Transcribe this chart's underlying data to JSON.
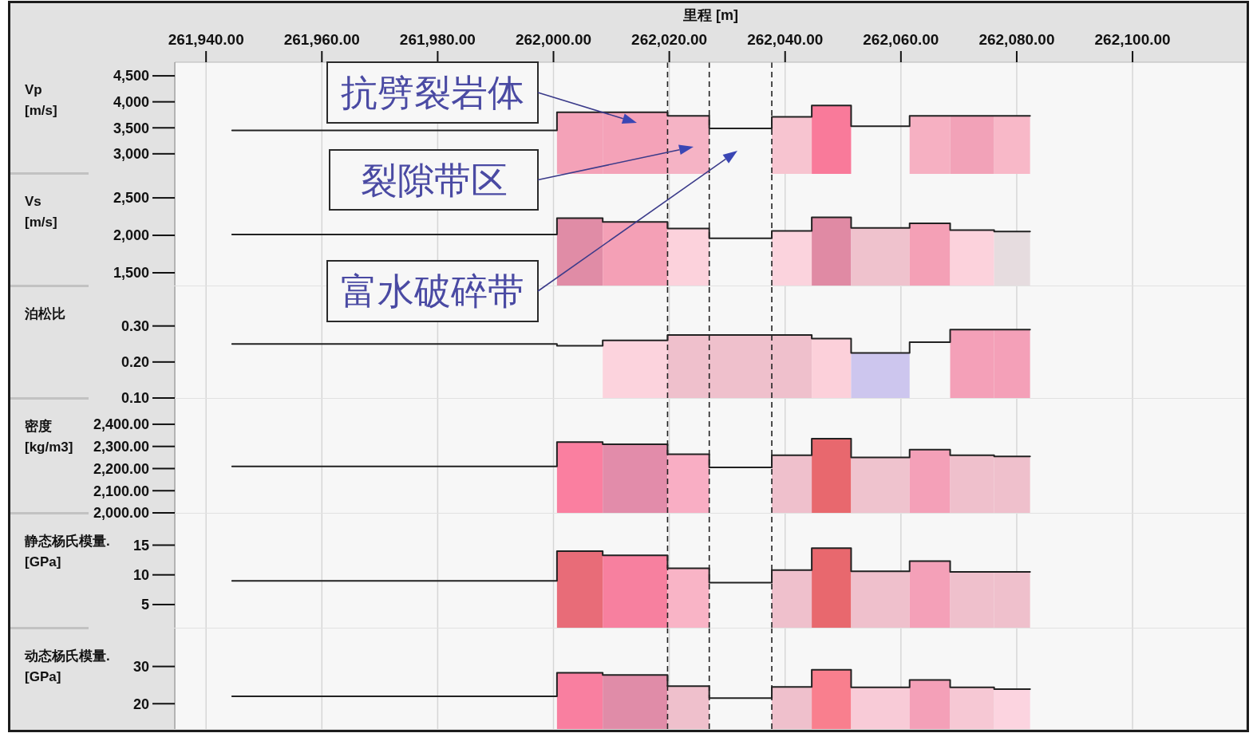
{
  "chart_data": [
    {
      "type": "histogram",
      "xlabel": "里程 [m]",
      "ylabel": "Vp\n[m/s]",
      "xlim": [
        261934.6,
        262119.7
      ],
      "xticks": [
        {
          "value": 261940,
          "label": "261,940.00"
        },
        {
          "value": 261960,
          "label": "261,960.00"
        },
        {
          "value": 261980,
          "label": "261,980.00"
        },
        {
          "value": 262000,
          "label": "262,000.00"
        },
        {
          "value": 262020,
          "label": "262,020.00"
        },
        {
          "value": 262040,
          "label": "262,040.00"
        },
        {
          "value": 262060,
          "label": "262,060.00"
        },
        {
          "value": 262080,
          "label": "262,080.00"
        },
        {
          "value": 262100,
          "label": "262,100.00"
        }
      ],
      "ylim": [
        2614,
        4762
      ],
      "yticks": [
        {
          "value": 3000,
          "label": "3,000"
        },
        {
          "value": 3500,
          "label": "3,500"
        },
        {
          "value": 4000,
          "label": "4,000"
        },
        {
          "value": 4500,
          "label": "4,500"
        }
      ],
      "grid": "x",
      "bins": [
        262000.6,
        262008.5,
        262019.7,
        262026.9,
        262037.7,
        262044.6,
        262051.4,
        262061.5,
        262068.5,
        262076.1,
        262082.3
      ],
      "values": [
        3800,
        3800,
        3730,
        null,
        3710,
        3930,
        null,
        3730,
        3730,
        3730
      ],
      "colors": [
        "#f4a2b8",
        "#f4a2b8",
        "#f5b3c5",
        null,
        "#f7c4d0",
        "#f97a9a",
        null,
        "#f6b0c2",
        "#f2a2b8",
        "#f8b8c8"
      ],
      "series": [
        {
          "type": "step",
          "color": "#222222",
          "x": [
            261944.5,
            262000.6,
            262008.5,
            262019.7,
            262026.9,
            262037.7,
            262044.6,
            262051.4,
            262061.5,
            262068.5,
            262076.1,
            262082.3
          ],
          "values": [
            3450,
            3800,
            3800,
            3730,
            3490,
            3710,
            3930,
            3530,
            3730,
            3730,
            3730,
            3730
          ]
        }
      ],
      "ref_lines": [
        {
          "axis": "x",
          "value": 262019.7,
          "line_style": "dashed",
          "color": "#222222"
        },
        {
          "axis": "x",
          "value": 262026.9,
          "line_style": "dashed",
          "color": "#222222"
        },
        {
          "axis": "x",
          "value": 262037.7,
          "line_style": "dashed",
          "color": "#222222"
        }
      ],
      "annotations": [
        "抗劈裂岩体",
        "裂隙带区",
        "富水破碎带"
      ]
    },
    {
      "type": "histogram",
      "ylabel": "Vs\n[m/s]",
      "tick_labels": "y",
      "xlim": [
        261934.6,
        262119.7
      ],
      "xticks": [
        261940,
        261960,
        261980,
        262000,
        262020,
        262040,
        262060,
        262080,
        262100
      ],
      "ylim": [
        1330,
        2820
      ],
      "yticks": [
        {
          "value": 1500,
          "label": "1,500"
        },
        {
          "value": 2000,
          "label": "2,000"
        },
        {
          "value": 2500,
          "label": "2,500"
        }
      ],
      "grid": "x",
      "bins": [
        262000.6,
        262008.5,
        262019.7,
        262026.9,
        262037.7,
        262044.6,
        262051.4,
        262061.5,
        262068.5,
        262076.1,
        262082.3
      ],
      "values": [
        2230,
        2180,
        2090,
        null,
        2060,
        2240,
        2100,
        2160,
        2070,
        2050
      ],
      "colors": [
        "#e08ca6",
        "#f4a0b6",
        "#fcd2dc",
        null,
        "#fbd3dd",
        "#e08aa4",
        "#efc2cd",
        "#f4a0b6",
        "#fcd2dc",
        "#e6dcdf"
      ],
      "series": [
        {
          "type": "step",
          "color": "#222222",
          "x": [
            261944.5,
            262000.6,
            262008.5,
            262019.7,
            262026.9,
            262037.7,
            262044.6,
            262051.4,
            262061.5,
            262068.5,
            262076.1,
            262082.3
          ],
          "values": [
            2010,
            2230,
            2180,
            2090,
            1960,
            2060,
            2240,
            2100,
            2160,
            2070,
            2050,
            2050
          ]
        }
      ],
      "ref_lines": [
        {
          "axis": "x",
          "value": 262019.7,
          "line_style": "dashed",
          "color": "#222222"
        },
        {
          "axis": "x",
          "value": 262026.9,
          "line_style": "dashed",
          "color": "#222222"
        },
        {
          "axis": "x",
          "value": 262037.7,
          "line_style": "dashed",
          "color": "#222222"
        }
      ]
    },
    {
      "type": "histogram",
      "ylabel": "泊松比",
      "tick_labels": "y",
      "xlim": [
        261934.6,
        262119.7
      ],
      "xticks": [
        261940,
        261960,
        261980,
        262000,
        262020,
        262040,
        262060,
        262080,
        262100
      ],
      "ylim": [
        0.1,
        0.41
      ],
      "yticks": [
        {
          "value": 0.1,
          "label": "0.10"
        },
        {
          "value": 0.2,
          "label": "0.20"
        },
        {
          "value": 0.3,
          "label": "0.30"
        }
      ],
      "grid": "x",
      "bins": [
        262008.5,
        262019.7,
        262026.9,
        262037.7,
        262044.6,
        262051.4,
        262061.5,
        262068.5,
        262076.1,
        262082.3
      ],
      "values": [
        0.26,
        0.275,
        0.275,
        0.275,
        0.265,
        0.225,
        null,
        0.29,
        0.29
      ],
      "colors": [
        "#fcd3dd",
        "#efc0cc",
        "#efc0cc",
        "#efc0cc",
        "#fcd0da",
        "#cdc6ee",
        null,
        "#f4a0b8",
        "#f4a0b8"
      ],
      "series": [
        {
          "type": "step",
          "color": "#222222",
          "x": [
            261944.5,
            262000.6,
            262008.5,
            262019.7,
            262026.9,
            262037.7,
            262044.6,
            262051.4,
            262061.5,
            262068.5,
            262076.1,
            262082.3
          ],
          "values": [
            0.25,
            0.245,
            0.26,
            0.275,
            0.275,
            0.275,
            0.265,
            0.225,
            0.255,
            0.29,
            0.29,
            0.29
          ]
        }
      ],
      "ref_lines": [
        {
          "axis": "x",
          "value": 262019.7,
          "line_style": "dashed",
          "color": "#222222"
        },
        {
          "axis": "x",
          "value": 262026.9,
          "line_style": "dashed",
          "color": "#222222"
        },
        {
          "axis": "x",
          "value": 262037.7,
          "line_style": "dashed",
          "color": "#222222"
        }
      ]
    },
    {
      "type": "histogram",
      "ylabel": "密度\n[kg/m3]",
      "tick_labels": "y",
      "xlim": [
        261934.6,
        262119.7
      ],
      "xticks": [
        261940,
        261960,
        261980,
        262000,
        262020,
        262040,
        262060,
        262080,
        262100
      ],
      "ylim": [
        2000,
        2515
      ],
      "yticks": [
        {
          "value": 2000,
          "label": "2,000.00"
        },
        {
          "value": 2100,
          "label": "2,100.00"
        },
        {
          "value": 2200,
          "label": "2,200.00"
        },
        {
          "value": 2300,
          "label": "2,300.00"
        },
        {
          "value": 2400,
          "label": "2,400.00"
        }
      ],
      "grid": "x",
      "bins": [
        262000.6,
        262008.5,
        262019.7,
        262026.9,
        262037.7,
        262044.6,
        262051.4,
        262061.5,
        262068.5,
        262076.1,
        262082.3
      ],
      "values": [
        2320,
        2310,
        2265,
        null,
        2260,
        2335,
        2250,
        2285,
        2260,
        2255
      ],
      "colors": [
        "#fa7fa0",
        "#e28caa",
        "#f9aec4",
        null,
        "#efc0cc",
        "#e8686e",
        "#efc3ce",
        "#f4a0b8",
        "#efc0cc",
        "#efc0cc"
      ],
      "series": [
        {
          "type": "step",
          "color": "#222222",
          "x": [
            261944.5,
            262000.6,
            262008.5,
            262019.7,
            262026.9,
            262037.7,
            262044.6,
            262051.4,
            262061.5,
            262068.5,
            262076.1,
            262082.3
          ],
          "values": [
            2210,
            2320,
            2310,
            2265,
            2205,
            2260,
            2335,
            2250,
            2285,
            2260,
            2255,
            2255
          ]
        }
      ],
      "ref_lines": [
        {
          "axis": "x",
          "value": 262019.7,
          "line_style": "dashed",
          "color": "#222222"
        },
        {
          "axis": "x",
          "value": 262026.9,
          "line_style": "dashed",
          "color": "#222222"
        },
        {
          "axis": "x",
          "value": 262037.7,
          "line_style": "dashed",
          "color": "#222222"
        }
      ]
    },
    {
      "type": "histogram",
      "ylabel": "静态杨氏模量.\n[GPa]",
      "tick_labels": "y",
      "xlim": [
        261934.6,
        262119.7
      ],
      "xticks": [
        261940,
        261960,
        261980,
        262000,
        262020,
        262040,
        262060,
        262080,
        262100
      ],
      "ylim": [
        1.1,
        20.3
      ],
      "yticks": [
        5,
        10,
        15
      ],
      "grid": "x",
      "bins": [
        262000.6,
        262008.5,
        262019.7,
        262026.9,
        262037.7,
        262044.6,
        262051.4,
        262061.5,
        262068.5,
        262076.1,
        262082.3
      ],
      "values": [
        14,
        13.3,
        11.1,
        null,
        10.8,
        14.5,
        10.6,
        12.3,
        10.5,
        10.5
      ],
      "colors": [
        "#e86c78",
        "#f7809f",
        "#f9b4c6",
        null,
        "#efc0cc",
        "#e8686e",
        "#efc0cc",
        "#f4a0b8",
        "#efc0cc",
        "#efc0cc"
      ],
      "series": [
        {
          "type": "step",
          "color": "#222222",
          "x": [
            261944.5,
            262000.6,
            262008.5,
            262019.7,
            262026.9,
            262037.7,
            262044.6,
            262051.4,
            262061.5,
            262068.5,
            262076.1,
            262082.3
          ],
          "values": [
            9,
            14,
            13.3,
            11.1,
            8.7,
            10.8,
            14.5,
            10.6,
            12.3,
            10.5,
            10.5,
            10.5
          ]
        }
      ],
      "ref_lines": [
        {
          "axis": "x",
          "value": 262019.7,
          "line_style": "dashed",
          "color": "#222222"
        },
        {
          "axis": "x",
          "value": 262026.9,
          "line_style": "dashed",
          "color": "#222222"
        },
        {
          "axis": "x",
          "value": 262037.7,
          "line_style": "dashed",
          "color": "#222222"
        }
      ]
    },
    {
      "type": "histogram",
      "ylabel": "动态杨氏模量.\n[GPa]",
      "tick_labels": "y",
      "xlim": [
        261934.6,
        262119.7
      ],
      "xticks": [
        261940,
        261960,
        261980,
        262000,
        262020,
        262040,
        262060,
        262080,
        262100
      ],
      "ylim": [
        13.2,
        40.2
      ],
      "yticks": [
        20,
        30
      ],
      "grid": "x",
      "bins": [
        262000.6,
        262008.5,
        262019.7,
        262026.9,
        262037.7,
        262044.6,
        262051.4,
        262061.5,
        262068.5,
        262076.1,
        262082.3
      ],
      "values": [
        28.3,
        27.7,
        24.7,
        null,
        24.5,
        29.1,
        24.4,
        26.4,
        24.4,
        23.9
      ],
      "colors": [
        "#f97fa0",
        "#e08ca8",
        "#efc0cc",
        null,
        "#efc0cc",
        "#f97f8e",
        "#f8cbd7",
        "#f4a0b8",
        "#f6c8d4",
        "#fcd4e0"
      ],
      "series": [
        {
          "type": "step",
          "color": "#222222",
          "x": [
            261944.5,
            262000.6,
            262008.5,
            262019.7,
            262026.9,
            262037.7,
            262044.6,
            262051.4,
            262061.5,
            262068.5,
            262076.1,
            262082.3
          ],
          "values": [
            22,
            28.3,
            27.7,
            24.7,
            21.5,
            24.5,
            29.1,
            24.4,
            26.4,
            24.4,
            23.9,
            23.9
          ]
        }
      ],
      "ref_lines": [
        {
          "axis": "x",
          "value": 262019.7,
          "line_style": "dashed",
          "color": "#222222"
        },
        {
          "axis": "x",
          "value": 262026.9,
          "line_style": "dashed",
          "color": "#222222"
        },
        {
          "axis": "x",
          "value": 262037.7,
          "line_style": "dashed",
          "color": "#222222"
        }
      ]
    }
  ]
}
